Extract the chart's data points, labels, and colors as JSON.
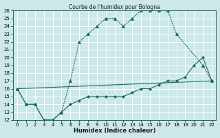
{
  "title": "Courbe de l'humidex pour Bologna",
  "xlabel": "Humidex (Indice chaleur)",
  "background_color": "#cce8e8",
  "grid_color": "#ffffff",
  "line_color": "#1a6b5e",
  "xlim": [
    -0.5,
    22.5
  ],
  "ylim": [
    12,
    26
  ],
  "xticks": [
    0,
    1,
    2,
    3,
    4,
    5,
    6,
    7,
    8,
    9,
    10,
    11,
    12,
    13,
    14,
    15,
    16,
    17,
    18,
    19,
    20,
    21,
    22
  ],
  "yticks": [
    12,
    13,
    14,
    15,
    16,
    17,
    18,
    19,
    20,
    21,
    22,
    23,
    24,
    25,
    26
  ],
  "series1_x": [
    0,
    1,
    2,
    3,
    4,
    5,
    6,
    7,
    8,
    9,
    10,
    11,
    12,
    13,
    14,
    15,
    16,
    17,
    18,
    21,
    22
  ],
  "series1_y": [
    16,
    14,
    14,
    12,
    12,
    13,
    17,
    22,
    23,
    24,
    25,
    25,
    24,
    25,
    26,
    26,
    26,
    26,
    23,
    19,
    17
  ],
  "series2_x": [
    0,
    1,
    2,
    3,
    4,
    5,
    6,
    7,
    8,
    9,
    10,
    11,
    12,
    13,
    14,
    15,
    16,
    17,
    18,
    19,
    20,
    21,
    22
  ],
  "series2_y": [
    16,
    14,
    14,
    12,
    12,
    13,
    14,
    14.5,
    15,
    15,
    15,
    15,
    15,
    15.5,
    16,
    16,
    16.5,
    17,
    17,
    17.5,
    19,
    20,
    17
  ],
  "series3_x": [
    0,
    22
  ],
  "series3_y": [
    16,
    17
  ]
}
